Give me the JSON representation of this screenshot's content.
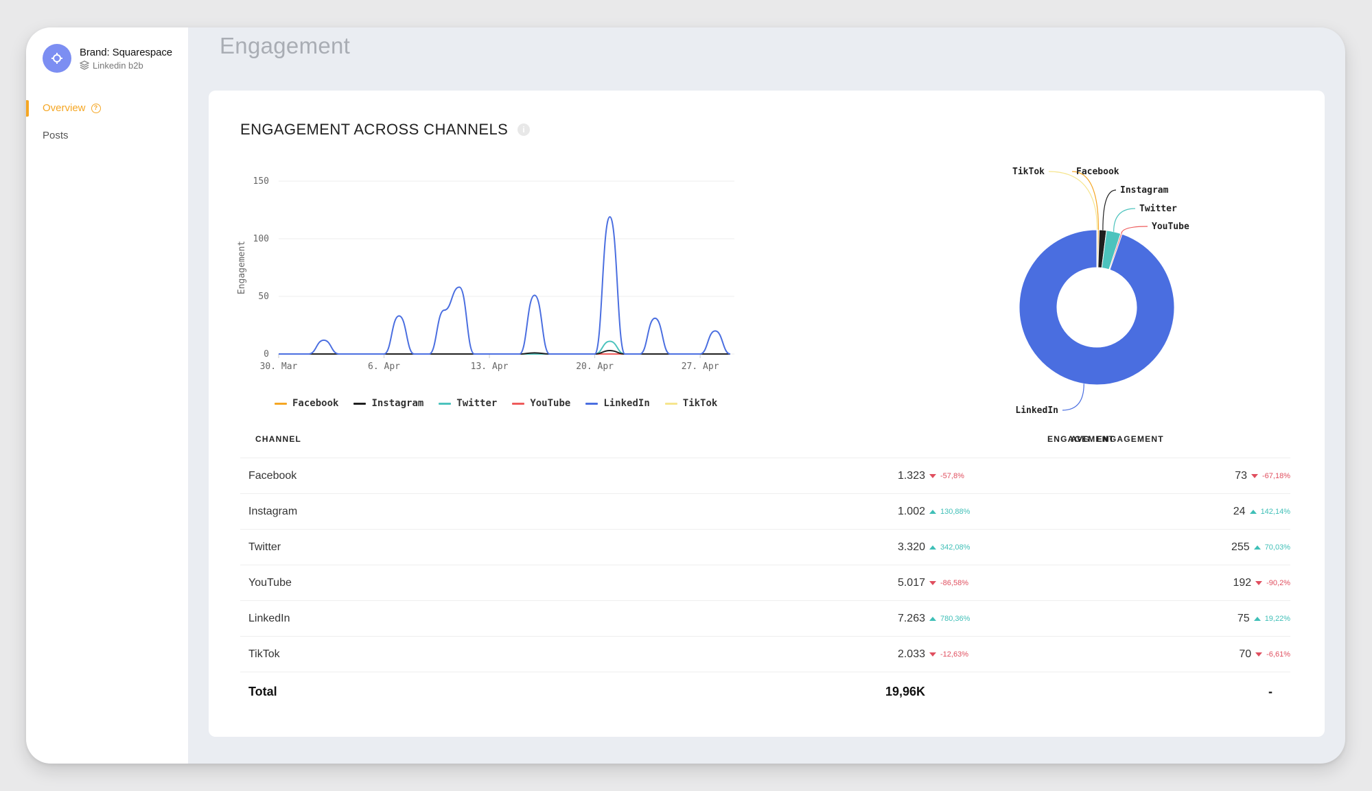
{
  "sidebar": {
    "brand_name": "Brand: Squarespace",
    "brand_sub": "Linkedin b2b",
    "nav": [
      {
        "label": "Overview",
        "active": true
      },
      {
        "label": "Posts",
        "active": false
      }
    ]
  },
  "page": {
    "title": "Engagement"
  },
  "card": {
    "title": "ENGAGEMENT ACROSS CHANNELS"
  },
  "colors": {
    "Facebook": "#f5a623",
    "Instagram": "#1f1f1f",
    "Twitter": "#4cc3bd",
    "YouTube": "#ee5b5b",
    "LinkedIn": "#4a6ee0",
    "TikTok": "#f6e58d"
  },
  "chart_data": [
    {
      "type": "line",
      "ylabel": "Engagement",
      "ylim": [
        0,
        150
      ],
      "yticks": [
        "0",
        "50",
        "100",
        "150"
      ],
      "xticks": [
        "30. Mar",
        "6. Apr",
        "13. Apr",
        "20. Apr",
        "27. Apr"
      ],
      "x": [
        0,
        1,
        2,
        3,
        4,
        5,
        6,
        7,
        8,
        9,
        10,
        11,
        12,
        13,
        14,
        15,
        16,
        17,
        18,
        19,
        20,
        21,
        22,
        23,
        24,
        25,
        26,
        27,
        28,
        29,
        30
      ],
      "series": [
        {
          "name": "Facebook",
          "values": [
            0,
            0,
            0,
            0,
            0,
            0,
            0,
            0,
            0,
            0,
            0,
            0,
            0,
            0,
            0,
            0,
            0,
            0,
            0,
            0,
            0,
            0,
            0,
            0,
            0,
            0,
            0,
            0,
            0,
            0,
            0
          ]
        },
        {
          "name": "Instagram",
          "values": [
            0,
            0,
            0,
            0,
            0,
            0,
            0,
            0,
            0,
            0,
            0,
            0,
            0,
            0,
            0,
            0,
            0,
            1,
            0,
            0,
            0,
            0,
            3,
            0,
            0,
            0,
            0,
            0,
            0,
            0,
            0
          ]
        },
        {
          "name": "Twitter",
          "values": [
            0,
            0,
            0,
            0,
            0,
            0,
            0,
            0,
            0,
            0,
            0,
            0,
            0,
            0,
            0,
            0,
            0,
            0,
            0,
            0,
            0,
            0,
            11,
            0,
            0,
            0,
            0,
            0,
            0,
            0,
            0
          ]
        },
        {
          "name": "YouTube",
          "values": [
            0,
            0,
            0,
            0,
            0,
            0,
            0,
            0,
            0,
            0,
            0,
            0,
            0,
            0,
            0,
            0,
            0,
            0,
            0,
            0,
            0,
            0,
            0,
            0,
            0,
            0,
            0,
            0,
            0,
            0,
            0
          ]
        },
        {
          "name": "LinkedIn",
          "values": [
            0,
            0,
            0,
            12,
            0,
            0,
            0,
            0,
            33,
            0,
            0,
            38,
            58,
            0,
            0,
            0,
            0,
            51,
            0,
            0,
            0,
            0,
            119,
            0,
            0,
            31,
            0,
            0,
            0,
            20,
            0
          ]
        },
        {
          "name": "TikTok",
          "values": [
            0,
            0,
            0,
            0,
            0,
            0,
            0,
            0,
            0,
            0,
            0,
            0,
            0,
            0,
            0,
            0,
            0,
            0,
            0,
            0,
            0,
            0,
            0,
            0,
            0,
            0,
            0,
            0,
            0,
            0,
            0
          ]
        }
      ]
    },
    {
      "type": "pie",
      "labels": [
        "TikTok",
        "Facebook",
        "Instagram",
        "Twitter",
        "YouTube",
        "LinkedIn"
      ],
      "values": [
        0.2,
        0.3,
        1.5,
        3.0,
        0.3,
        94.7
      ]
    }
  ],
  "table": {
    "headers": {
      "channel": "CHANNEL",
      "engagement": "ENGAGEMENT",
      "avg": "AVG. ENGAGEMENT"
    },
    "rows": [
      {
        "channel": "Facebook",
        "engagement": "1.323",
        "eng_delta": "-57,8%",
        "eng_dir": "down",
        "avg": "73",
        "avg_delta": "-67,18%",
        "avg_dir": "down"
      },
      {
        "channel": "Instagram",
        "engagement": "1.002",
        "eng_delta": "130,88%",
        "eng_dir": "up",
        "avg": "24",
        "avg_delta": "142,14%",
        "avg_dir": "up"
      },
      {
        "channel": "Twitter",
        "engagement": "3.320",
        "eng_delta": "342,08%",
        "eng_dir": "up",
        "avg": "255",
        "avg_delta": "70,03%",
        "avg_dir": "up"
      },
      {
        "channel": "YouTube",
        "engagement": "5.017",
        "eng_delta": "-86,58%",
        "eng_dir": "down",
        "avg": "192",
        "avg_delta": "-90,2%",
        "avg_dir": "down"
      },
      {
        "channel": "LinkedIn",
        "engagement": "7.263",
        "eng_delta": "780,36%",
        "eng_dir": "up",
        "avg": "75",
        "avg_delta": "19,22%",
        "avg_dir": "up"
      },
      {
        "channel": "TikTok",
        "engagement": "2.033",
        "eng_delta": "-12,63%",
        "eng_dir": "down",
        "avg": "70",
        "avg_delta": "-6,61%",
        "avg_dir": "down"
      }
    ],
    "total": {
      "label": "Total",
      "engagement": "19,96K",
      "avg": "-"
    }
  }
}
